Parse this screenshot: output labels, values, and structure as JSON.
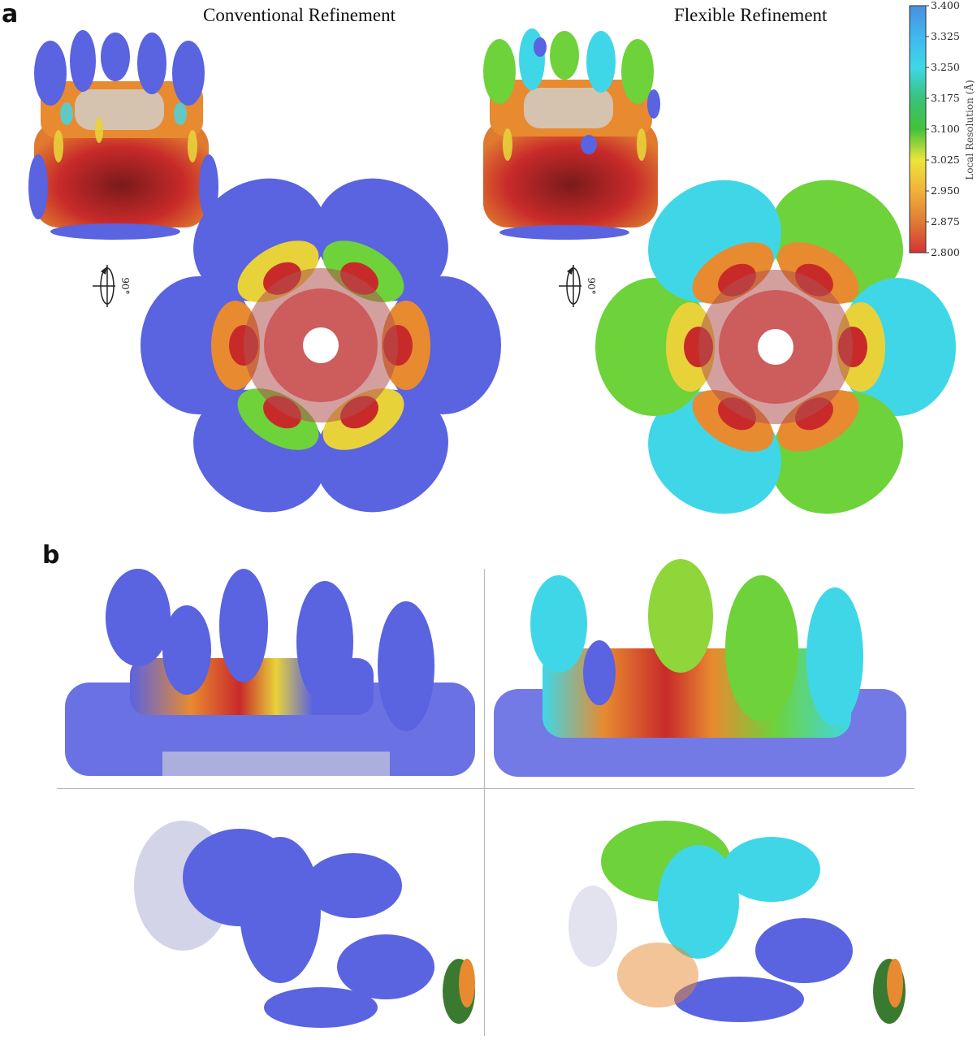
{
  "panels": {
    "a": {
      "letter": "a"
    },
    "b": {
      "letter": "b"
    }
  },
  "columns": {
    "left_title": "Conventional Refinement",
    "right_title": "Flexible Refinement"
  },
  "rotation_label": "90°",
  "colorbar": {
    "title": "Local Resolution (Å)",
    "ticks": [
      "3.400",
      "3.325",
      "3.250",
      "3.175",
      "3.100",
      "3.025",
      "2.950",
      "2.875",
      "2.800"
    ],
    "colors": [
      "#4a8fe0",
      "#3fd7e8",
      "#3ddcc8",
      "#38c24a",
      "#7bd43a",
      "#ece03a",
      "#f0b23a",
      "#e07a35",
      "#d23535"
    ]
  },
  "colors": {
    "blue": "#5a63e0",
    "cyan": "#3fd7e8",
    "green": "#6ed23a",
    "yellow": "#e8d23a",
    "orange": "#e88a30",
    "red": "#c82a2a"
  }
}
